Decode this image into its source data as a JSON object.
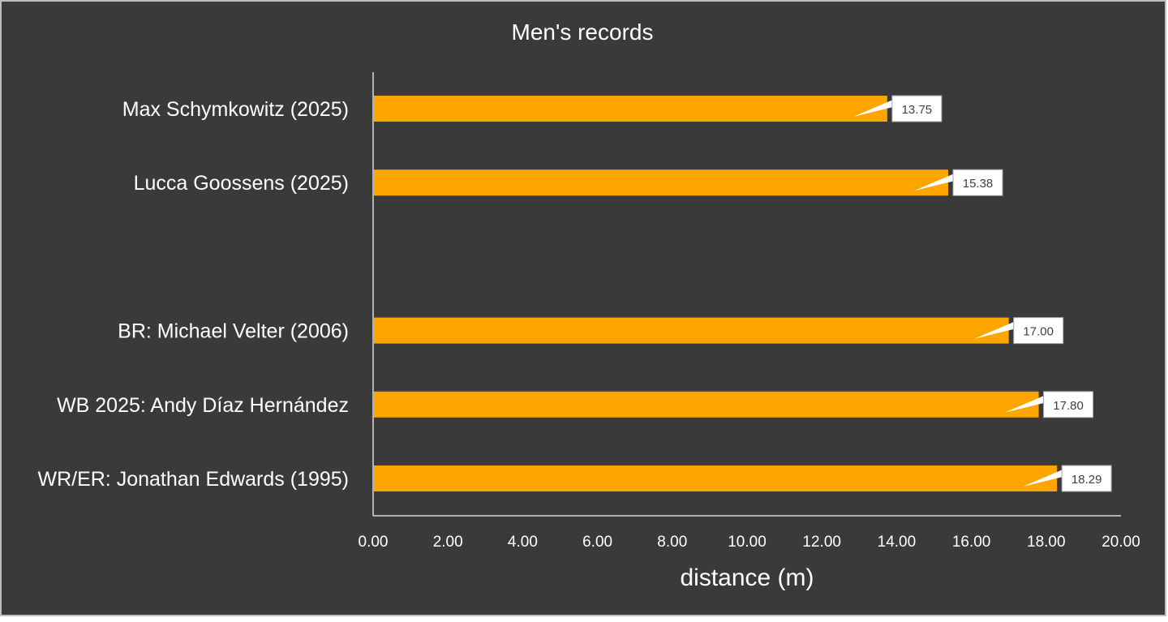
{
  "chart_data": {
    "type": "bar",
    "orientation": "horizontal",
    "title": "Men's records",
    "xlabel": "distance (m)",
    "ylabel": "",
    "xlim": [
      0,
      20
    ],
    "xticks": [
      "0.00",
      "2.00",
      "4.00",
      "6.00",
      "8.00",
      "10.00",
      "12.00",
      "14.00",
      "16.00",
      "18.00",
      "20.00"
    ],
    "grid": false,
    "legend": "none",
    "categories": [
      "Max Schymkowitz (2025)",
      "Lucca Goossens (2025)",
      "",
      "BR: Michael Velter (2006)",
      "WB 2025: Andy Díaz Hernández",
      "WR/ER: Jonathan Edwards (1995)"
    ],
    "values": [
      13.75,
      15.38,
      null,
      17.0,
      17.8,
      18.29
    ],
    "data_labels": [
      "13.75",
      "15.38",
      "",
      "17.00",
      "17.80",
      "18.29"
    ],
    "colors": {
      "background": "#3a3a3a",
      "bar": "#ffa500",
      "axis": "#d9d9d9",
      "text": "#ffffff",
      "label_box": "#ffffff",
      "label_border": "#a6a6a6",
      "label_text": "#404040"
    }
  }
}
